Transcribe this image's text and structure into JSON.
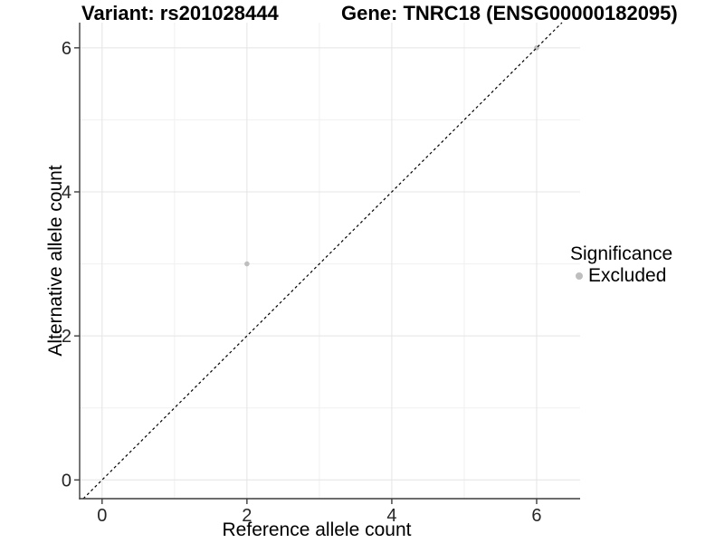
{
  "chart_data": {
    "type": "scatter",
    "title_left": "Variant: rs201028444",
    "title_right": "Gene: TNRC18 (ENSG00000182095)",
    "xlabel": "Reference allele count",
    "ylabel": "Alternative allele count",
    "xlim": [
      -0.31,
      6.6
    ],
    "ylim": [
      -0.26,
      6.35
    ],
    "xticks": [
      0,
      2,
      4,
      6
    ],
    "yticks": [
      0,
      2,
      4,
      6
    ],
    "x_minor": [
      1,
      3,
      5
    ],
    "y_minor": [
      1,
      3,
      5
    ],
    "grid": "on",
    "points": [
      {
        "x": 2,
        "y": 3,
        "series": "Excluded"
      },
      {
        "x": 6,
        "y": 6,
        "series": "Excluded"
      }
    ],
    "reference_line": {
      "type": "identity",
      "slope": 1,
      "intercept": 0,
      "style": "dashed",
      "color": "#000000"
    },
    "legend": {
      "title": "Significance",
      "position": "right",
      "entries": [
        {
          "label": "Excluded",
          "color": "#bebebe"
        }
      ]
    },
    "colors": {
      "background": "#ffffff",
      "point": "#bebebe",
      "grid_major": "#e4e4e4",
      "grid_minor": "#f0f0f0",
      "axis_line": "#3d3d3d",
      "tick_label": "#262626",
      "text": "#000000"
    }
  }
}
